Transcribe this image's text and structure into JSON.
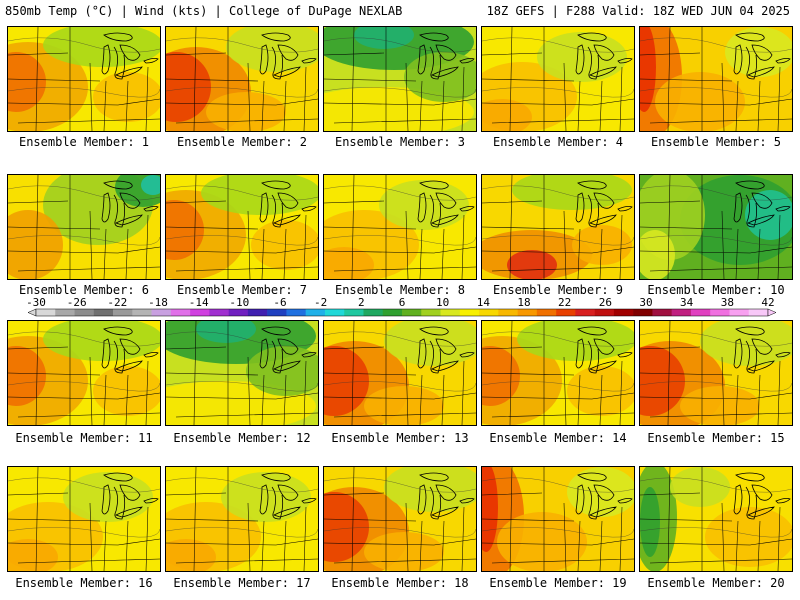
{
  "header": {
    "left": "850mb Temp (°C) | Wind (kts) | College of DuPage NEXLAB",
    "right": "18Z GEFS | F288 Valid: 18Z WED JUN 04 2025"
  },
  "panels": [
    {
      "label": "Ensemble Member: 1",
      "theme": "warm-w"
    },
    {
      "label": "Ensemble Member: 2",
      "theme": "hot-sw"
    },
    {
      "label": "Ensemble Member: 3",
      "theme": "cool-n"
    },
    {
      "label": "Ensemble Member: 4",
      "theme": "mild"
    },
    {
      "label": "Ensemble Member: 5",
      "theme": "hot-w"
    },
    {
      "label": "Ensemble Member: 6",
      "theme": "cool-ne"
    },
    {
      "label": "Ensemble Member: 7",
      "theme": "warm-w"
    },
    {
      "label": "Ensemble Member: 8",
      "theme": "mild"
    },
    {
      "label": "Ensemble Member: 9",
      "theme": "hot-s"
    },
    {
      "label": "Ensemble Member: 10",
      "theme": "cool"
    },
    {
      "label": "Ensemble Member: 11",
      "theme": "warm-w"
    },
    {
      "label": "Ensemble Member: 12",
      "theme": "cool-n"
    },
    {
      "label": "Ensemble Member: 13",
      "theme": "hot-sw"
    },
    {
      "label": "Ensemble Member: 14",
      "theme": "warm-w"
    },
    {
      "label": "Ensemble Member: 15",
      "theme": "hot-sw"
    },
    {
      "label": "Ensemble Member: 16",
      "theme": "mild"
    },
    {
      "label": "Ensemble Member: 17",
      "theme": "mild"
    },
    {
      "label": "Ensemble Member: 18",
      "theme": "hot-sw"
    },
    {
      "label": "Ensemble Member: 19",
      "theme": "hot-w"
    },
    {
      "label": "Ensemble Member: 20",
      "theme": "cool-w"
    }
  ],
  "colorbar": {
    "ticks": [
      "-30",
      "-26",
      "-22",
      "-18",
      "-14",
      "-10",
      "-6",
      "-2",
      "2",
      "6",
      "10",
      "14",
      "18",
      "22",
      "26",
      "30",
      "34",
      "38",
      "42"
    ],
    "colors": [
      "#d8d8d8",
      "#a8a8a8",
      "#8c8c8c",
      "#707070",
      "#9a9a9a",
      "#b4b4b4",
      "#c8a0e0",
      "#e070e8",
      "#d040e0",
      "#a030d0",
      "#7020c0",
      "#4020b0",
      "#2040c0",
      "#2070e0",
      "#20b0e8",
      "#20d8d8",
      "#20c8a0",
      "#20a860",
      "#30a030",
      "#60b020",
      "#a0d020",
      "#d8e820",
      "#f8f000",
      "#f8d800",
      "#f8b800",
      "#f89800",
      "#f07000",
      "#e84000",
      "#d82020",
      "#c01010",
      "#a00000",
      "#800000",
      "#a01040",
      "#c02080",
      "#e040c0",
      "#f070e0",
      "#f8a0f0",
      "#f8c8f8"
    ]
  }
}
